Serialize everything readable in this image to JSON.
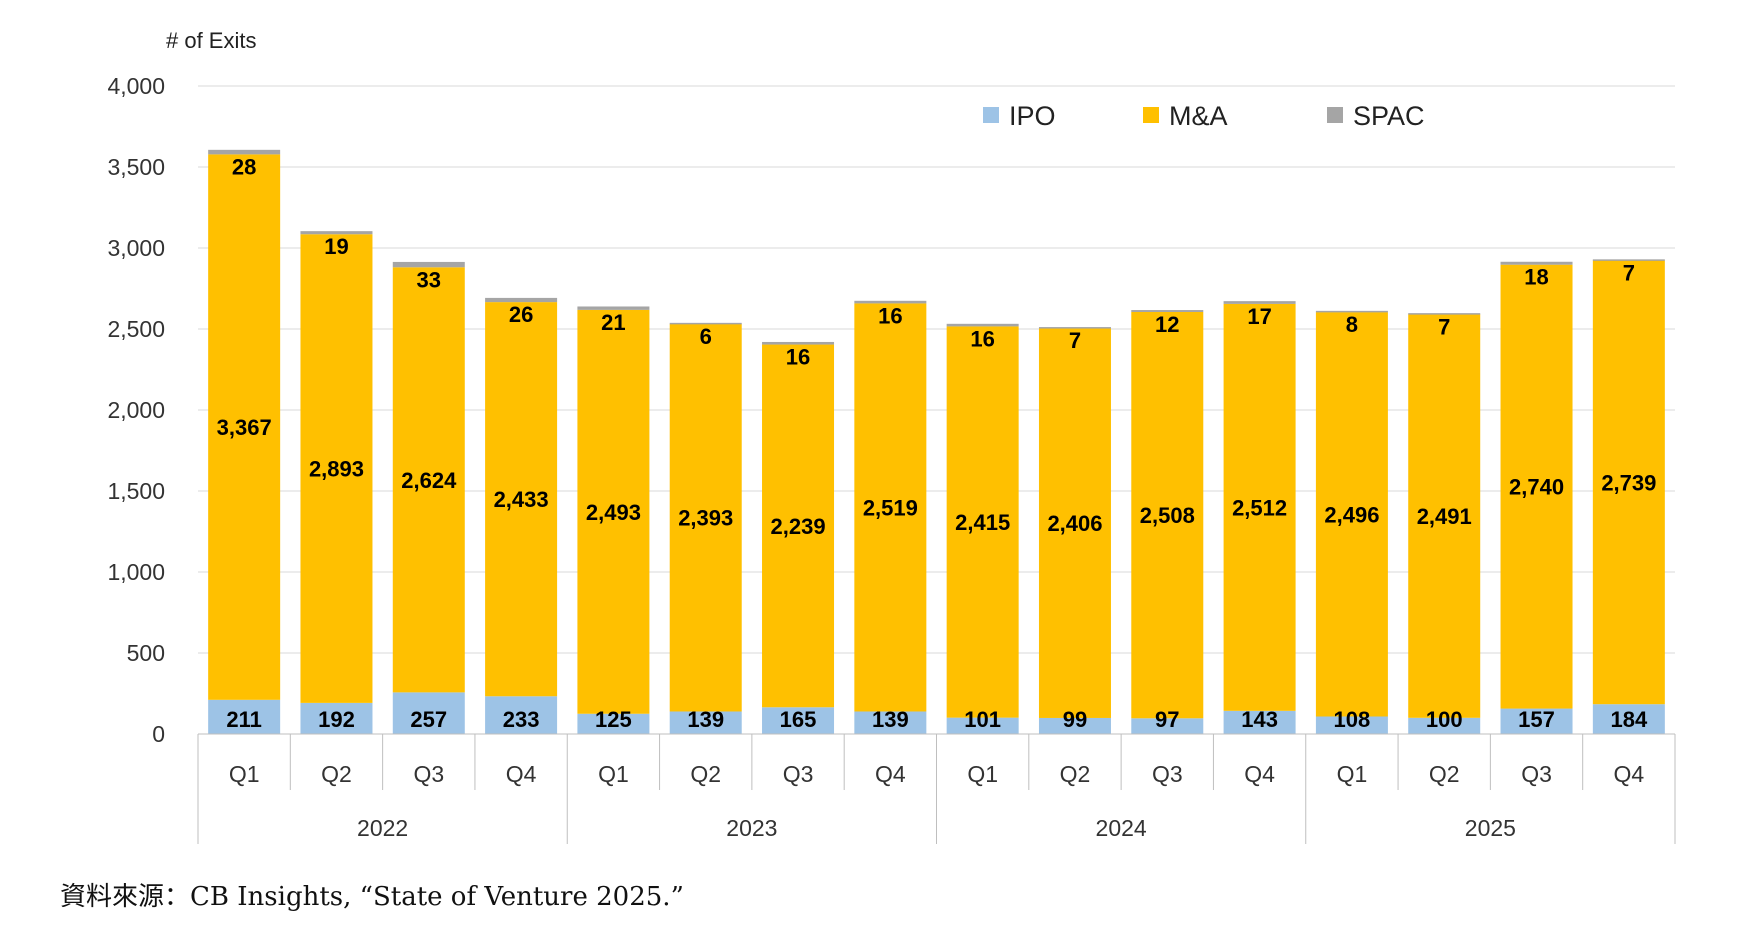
{
  "chart_data": {
    "type": "bar",
    "stacked": true,
    "ylabel": "# of Exits",
    "ylim": [
      0,
      4000
    ],
    "yticks": [
      "0",
      "500",
      "1,000",
      "1,500",
      "2,000",
      "2,500",
      "3,000",
      "3,500",
      "4,000"
    ],
    "categories": [
      "Q1",
      "Q2",
      "Q3",
      "Q4",
      "Q1",
      "Q2",
      "Q3",
      "Q4",
      "Q1",
      "Q2",
      "Q3",
      "Q4",
      "Q1",
      "Q2",
      "Q3",
      "Q4"
    ],
    "years": [
      "2022",
      "2023",
      "2024",
      "2025"
    ],
    "legend_position": "top-right",
    "series": [
      {
        "name": "IPO",
        "color": "#9DC3E6",
        "values": [
          211,
          192,
          257,
          233,
          125,
          139,
          165,
          139,
          101,
          99,
          97,
          143,
          108,
          100,
          157,
          184
        ],
        "labels": [
          "211",
          "192",
          "257",
          "233",
          "125",
          "139",
          "165",
          "139",
          "101",
          "99",
          "97",
          "143",
          "108",
          "100",
          "157",
          "184"
        ]
      },
      {
        "name": "M&A",
        "color": "#FFC000",
        "values": [
          3367,
          2893,
          2624,
          2433,
          2493,
          2393,
          2239,
          2519,
          2415,
          2406,
          2508,
          2512,
          2496,
          2491,
          2740,
          2739
        ],
        "labels": [
          "3,367",
          "2,893",
          "2,624",
          "2,433",
          "2,493",
          "2,393",
          "2,239",
          "2,519",
          "2,415",
          "2,406",
          "2,508",
          "2,512",
          "2,496",
          "2,491",
          "2,740",
          "2,739"
        ]
      },
      {
        "name": "SPAC",
        "color": "#A5A5A5",
        "values": [
          28,
          19,
          33,
          26,
          21,
          6,
          16,
          16,
          16,
          7,
          12,
          17,
          8,
          7,
          18,
          7
        ],
        "labels": [
          "28",
          "19",
          "33",
          "26",
          "21",
          "6",
          "16",
          "16",
          "16",
          "7",
          "12",
          "17",
          "8",
          "7",
          "18",
          "7"
        ]
      }
    ]
  },
  "source": "資料來源：CB Insights, “State of Venture 2025.”"
}
